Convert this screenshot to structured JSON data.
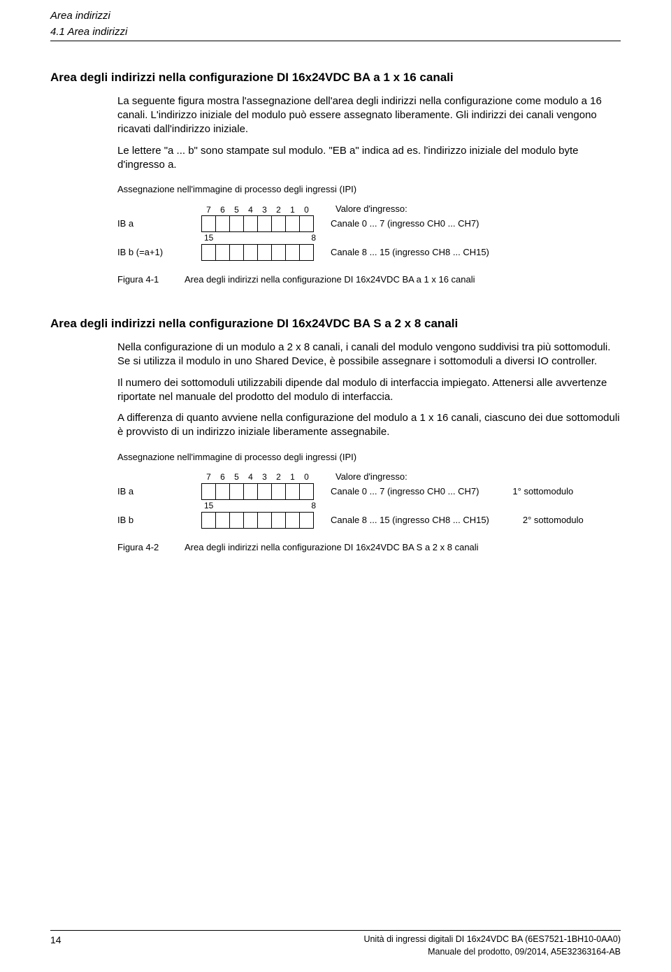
{
  "header": {
    "title": "Area indirizzi",
    "subtitle": "4.1 Area indirizzi"
  },
  "section1": {
    "heading": "Area degli indirizzi nella configurazione DI 16x24VDC BA a 1 x 16 canali",
    "para1": "La seguente figura mostra l'assegnazione dell'area degli indirizzi nella configurazione come modulo a 16 canali. L'indirizzo iniziale del modulo può essere assegnato liberamente. Gli indirizzi dei canali vengono ricavati dall'indirizzo iniziale.",
    "para2": "Le lettere \"a ... b\" sono stampate sul modulo. \"EB a\" indica ad es. l'indirizzo iniziale del modulo byte d'ingresso a.",
    "diagram": {
      "title": "Assegnazione nell'immagine di processo degli ingressi (IPI)",
      "value_header": "Valore d'ingresso:",
      "bits_top": [
        "7",
        "6",
        "5",
        "4",
        "3",
        "2",
        "1",
        "0"
      ],
      "bits_bottom_left": "15",
      "bits_bottom_right": "8",
      "rows": [
        {
          "label": "IB a",
          "desc": "Canale 0 ... 7 (ingresso CH0 ... CH7)"
        },
        {
          "label": "IB b (=a+1)",
          "desc": "Canale 8 ... 15 (ingresso CH8 ... CH15)"
        }
      ]
    },
    "figure": {
      "num": "Figura 4-1",
      "caption": "Area degli indirizzi nella configurazione DI 16x24VDC BA a 1 x 16 canali"
    }
  },
  "section2": {
    "heading": "Area degli indirizzi nella configurazione DI 16x24VDC BA S a 2 x 8 canali",
    "para1": "Nella configurazione di un modulo a 2 x 8 canali, i canali del modulo vengono suddivisi tra più sottomoduli. Se si utilizza il modulo in uno Shared Device, è possibile assegnare i sottomoduli a diversi IO controller.",
    "para2": "Il numero dei sottomoduli utilizzabili dipende dal modulo di interfaccia impiegato. Attenersi alle avvertenze riportate nel manuale del prodotto del modulo di interfaccia.",
    "para3": "A differenza di quanto avviene nella configurazione del modulo a 1 x 16 canali, ciascuno dei due sottomoduli è provvisto di un indirizzo iniziale liberamente assegnabile.",
    "diagram": {
      "title": "Assegnazione nell'immagine di processo degli ingressi (IPI)",
      "value_header": "Valore d'ingresso:",
      "bits_top": [
        "7",
        "6",
        "5",
        "4",
        "3",
        "2",
        "1",
        "0"
      ],
      "bits_bottom_left": "15",
      "bits_bottom_right": "8",
      "rows": [
        {
          "label": "IB a",
          "desc": "Canale 0 ... 7 (ingresso CH0 ... CH7)",
          "submod": "1° sottomodulo"
        },
        {
          "label": "IB b",
          "desc": "Canale 8 ... 15 (ingresso CH8 ... CH15)",
          "submod": "2° sottomodulo"
        }
      ]
    },
    "figure": {
      "num": "Figura 4-2",
      "caption": "Area degli indirizzi nella configurazione DI 16x24VDC BA S a 2 x 8 canali"
    }
  },
  "footer": {
    "page_num": "14",
    "line1": "Unità di ingressi digitali DI 16x24VDC BA (6ES7521-1BH10-0AA0)",
    "line2": "Manuale del prodotto, 09/2014, A5E32363164-AB"
  }
}
